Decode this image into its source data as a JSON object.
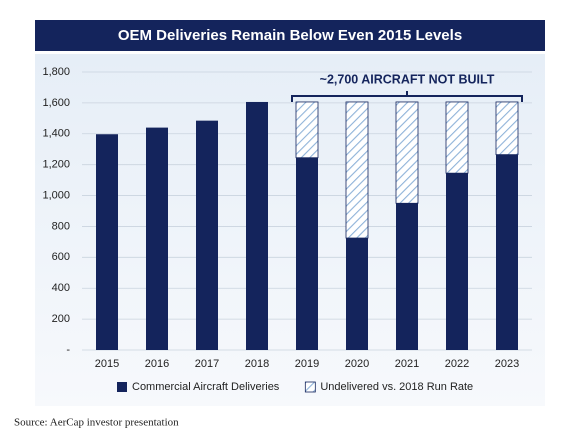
{
  "chart_data": {
    "type": "bar",
    "stacked": true,
    "title": "OEM Deliveries Remain Below Even 2015 Levels",
    "annotation": "~2,700 AIRCRAFT NOT BUILT",
    "source": "Source: AerCap investor presentation",
    "categories": [
      "2015",
      "2016",
      "2017",
      "2018",
      "2019",
      "2020",
      "2021",
      "2022",
      "2023"
    ],
    "series": [
      {
        "name": "Commercial Aircraft Deliveries",
        "color": "#14245c",
        "values": [
          1397,
          1440,
          1485,
          1606,
          1245,
          725,
          950,
          1145,
          1265
        ]
      },
      {
        "name": "Undelivered vs. 2018 Run Rate",
        "color": "#8fb3d9",
        "hatched": true,
        "values": [
          null,
          null,
          null,
          null,
          361,
          881,
          656,
          461,
          341
        ]
      }
    ],
    "ylim": [
      0,
      1800
    ],
    "yticks": [
      {
        "value": 0,
        "label": "-"
      },
      200,
      400,
      600,
      800,
      {
        "value": 1000,
        "label": "1,000"
      },
      {
        "value": 1200,
        "label": "1,200"
      },
      {
        "value": 1400,
        "label": "1,400"
      },
      {
        "value": 1600,
        "label": "1,600"
      },
      {
        "value": 1800,
        "label": "1,800"
      }
    ],
    "grid": true,
    "legend": "bottom"
  }
}
